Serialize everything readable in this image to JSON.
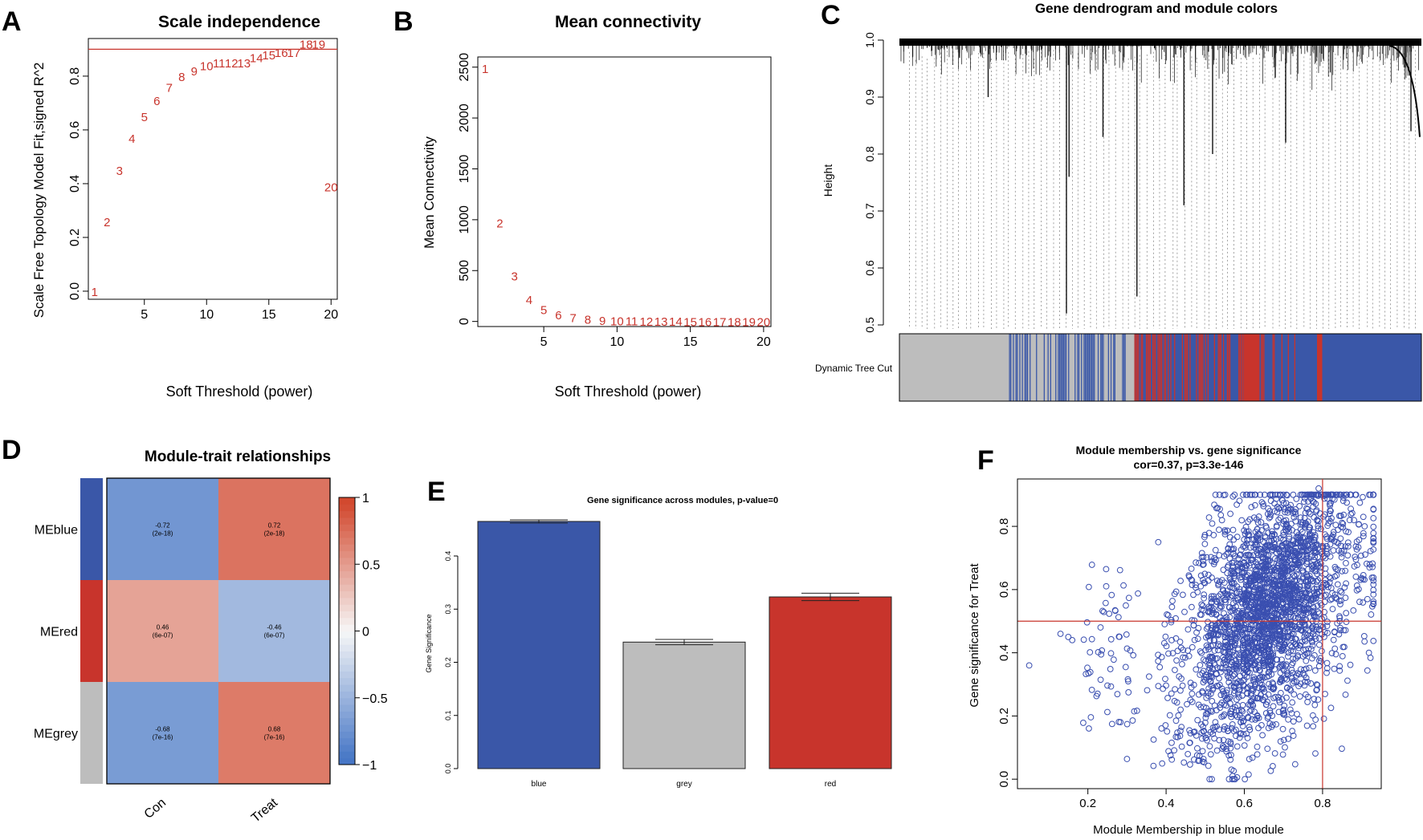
{
  "colors": {
    "red": "#c8342c",
    "blue": "#3a57a8",
    "grey": "#bdbdbd",
    "heat_low": "#4777c6",
    "heat_mid": "#f7f7f7",
    "heat_high": "#d2492f",
    "scatter": "#3a4fb0",
    "axis": "#000000"
  },
  "chart_data": [
    {
      "panel": "A",
      "type": "scatter",
      "title": "Scale independence",
      "xlabel": "Soft Threshold (power)",
      "ylabel": "Scale Free Topology Model Fit,signed R^2",
      "xlim": [
        0.5,
        20.5
      ],
      "ylim": [
        -0.03,
        0.94
      ],
      "xticks": [
        "5",
        "10",
        "15",
        "20"
      ],
      "yticks": [
        "0.0",
        "0.2",
        "0.4",
        "0.6",
        "0.8"
      ],
      "hline": 0.9,
      "points": [
        {
          "x": 1,
          "y": 0.0,
          "label": "1"
        },
        {
          "x": 2,
          "y": 0.26,
          "label": "2"
        },
        {
          "x": 3,
          "y": 0.45,
          "label": "3"
        },
        {
          "x": 4,
          "y": 0.57,
          "label": "4"
        },
        {
          "x": 5,
          "y": 0.65,
          "label": "5"
        },
        {
          "x": 6,
          "y": 0.71,
          "label": "6"
        },
        {
          "x": 7,
          "y": 0.76,
          "label": "7"
        },
        {
          "x": 8,
          "y": 0.8,
          "label": "8"
        },
        {
          "x": 9,
          "y": 0.82,
          "label": "9"
        },
        {
          "x": 10,
          "y": 0.84,
          "label": "10"
        },
        {
          "x": 11,
          "y": 0.85,
          "label": "11"
        },
        {
          "x": 12,
          "y": 0.85,
          "label": "12"
        },
        {
          "x": 13,
          "y": 0.85,
          "label": "13"
        },
        {
          "x": 14,
          "y": 0.87,
          "label": "14"
        },
        {
          "x": 15,
          "y": 0.88,
          "label": "15"
        },
        {
          "x": 16,
          "y": 0.89,
          "label": "16"
        },
        {
          "x": 17,
          "y": 0.89,
          "label": "17"
        },
        {
          "x": 18,
          "y": 0.92,
          "label": "18"
        },
        {
          "x": 19,
          "y": 0.92,
          "label": "19"
        },
        {
          "x": 20,
          "y": 0.39,
          "label": "20"
        }
      ]
    },
    {
      "panel": "B",
      "type": "scatter",
      "title": "Mean connectivity",
      "xlabel": "Soft Threshold (power)",
      "ylabel": "Mean Connectivity",
      "xlim": [
        0.5,
        20.5
      ],
      "ylim": [
        -50,
        2600
      ],
      "xticks": [
        "5",
        "10",
        "15",
        "20"
      ],
      "yticks": [
        "0",
        "500",
        "1000",
        "1500",
        "2000",
        "2500"
      ],
      "points": [
        {
          "x": 1,
          "y": 2490,
          "label": "1"
        },
        {
          "x": 2,
          "y": 970,
          "label": "2"
        },
        {
          "x": 3,
          "y": 450,
          "label": "3"
        },
        {
          "x": 4,
          "y": 220,
          "label": "4"
        },
        {
          "x": 5,
          "y": 120,
          "label": "5"
        },
        {
          "x": 6,
          "y": 70,
          "label": "6"
        },
        {
          "x": 7,
          "y": 40,
          "label": "7"
        },
        {
          "x": 8,
          "y": 25,
          "label": "8"
        },
        {
          "x": 9,
          "y": 15,
          "label": "9"
        },
        {
          "x": 10,
          "y": 10,
          "label": "10"
        },
        {
          "x": 11,
          "y": 8,
          "label": "11"
        },
        {
          "x": 12,
          "y": 6,
          "label": "12"
        },
        {
          "x": 13,
          "y": 5,
          "label": "13"
        },
        {
          "x": 14,
          "y": 4,
          "label": "14"
        },
        {
          "x": 15,
          "y": 3,
          "label": "15"
        },
        {
          "x": 16,
          "y": 3,
          "label": "16"
        },
        {
          "x": 17,
          "y": 2,
          "label": "17"
        },
        {
          "x": 18,
          "y": 2,
          "label": "18"
        },
        {
          "x": 19,
          "y": 2,
          "label": "19"
        },
        {
          "x": 20,
          "y": 1,
          "label": "20"
        }
      ]
    },
    {
      "panel": "C",
      "type": "dendrogram",
      "title": "Gene dendrogram and module colors",
      "ylabel": "Height",
      "ylim": [
        0.5,
        1.0
      ],
      "yticks": [
        "0.5",
        "0.6",
        "0.7",
        "0.8",
        "0.9",
        "1.0"
      ],
      "color_bar_label": "Dynamic Tree Cut",
      "color_bar_segments": [
        {
          "from": 0.0,
          "to": 0.21,
          "color": "grey"
        },
        {
          "from": 0.21,
          "to": 0.45,
          "color": "mixed-blue-grey"
        },
        {
          "from": 0.45,
          "to": 0.66,
          "color": "mixed-red-blue"
        },
        {
          "from": 0.66,
          "to": 0.69,
          "color": "red"
        },
        {
          "from": 0.69,
          "to": 0.76,
          "color": "mixed-red-blue"
        },
        {
          "from": 0.76,
          "to": 0.8,
          "color": "blue"
        },
        {
          "from": 0.8,
          "to": 0.81,
          "color": "red"
        },
        {
          "from": 0.81,
          "to": 1.0,
          "color": "blue"
        }
      ],
      "deep_merges": [
        {
          "pos": 0.32,
          "height": 0.52
        },
        {
          "pos": 0.455,
          "height": 0.55
        },
        {
          "pos": 0.545,
          "height": 0.71
        },
        {
          "pos": 0.325,
          "height": 0.76
        },
        {
          "pos": 0.17,
          "height": 0.9
        },
        {
          "pos": 0.39,
          "height": 0.83
        },
        {
          "pos": 0.6,
          "height": 0.8
        },
        {
          "pos": 0.74,
          "height": 0.82
        },
        {
          "pos": 0.98,
          "height": 0.84
        }
      ]
    },
    {
      "panel": "D",
      "type": "heatmap",
      "title": "Module-trait relationships",
      "rows": [
        "MEblue",
        "MEred",
        "MEgrey"
      ],
      "row_colors": [
        "blue",
        "red",
        "grey"
      ],
      "columns": [
        "Con",
        "Treat"
      ],
      "values": [
        [
          -0.72,
          0.72
        ],
        [
          0.46,
          -0.46
        ],
        [
          -0.68,
          0.68
        ]
      ],
      "cell_text": [
        [
          [
            "-0.72",
            "(2e-18)"
          ],
          [
            "0.72",
            "(2e-18)"
          ]
        ],
        [
          [
            "0.46",
            "(6e-07)"
          ],
          [
            "-0.46",
            "(6e-07)"
          ]
        ],
        [
          [
            "-0.68",
            "(7e-16)"
          ],
          [
            "0.68",
            "(7e-16)"
          ]
        ]
      ],
      "colorbar_ticks": [
        "1",
        "0.5",
        "0",
        "-0.5",
        "-1"
      ],
      "colorbar_range": [
        -1,
        1
      ]
    },
    {
      "panel": "E",
      "type": "bar",
      "title": "Gene significance across modules, p-value=0",
      "ylabel": "Gene Significance",
      "categories": [
        "blue",
        "grey",
        "red"
      ],
      "values": [
        0.465,
        0.238,
        0.323
      ],
      "errors": [
        0.003,
        0.005,
        0.007
      ],
      "bar_colors": [
        "blue",
        "grey",
        "red"
      ],
      "ylim": [
        0,
        0.48
      ],
      "yticks": [
        "0.0",
        "0.1",
        "0.2",
        "0.3",
        "0.4"
      ]
    },
    {
      "panel": "F",
      "type": "scatter",
      "title": "Module membership vs. gene significance",
      "subtitle": "cor=0.37, p=3.3e-146",
      "xlabel": "Module Membership in blue module",
      "ylabel": "Gene significance for Treat",
      "xlim": [
        0.02,
        0.95
      ],
      "ylim": [
        -0.03,
        0.95
      ],
      "xticks": [
        "0.2",
        "0.4",
        "0.6",
        "0.8"
      ],
      "yticks": [
        "0.0",
        "0.2",
        "0.4",
        "0.6",
        "0.8"
      ],
      "hline": 0.5,
      "vline": 0.8,
      "n_points": 2600,
      "points_sample": [
        {
          "x": 0.05,
          "y": 0.36
        },
        {
          "x": 0.13,
          "y": 0.46
        },
        {
          "x": 0.15,
          "y": 0.45
        },
        {
          "x": 0.16,
          "y": 0.44
        },
        {
          "x": 0.38,
          "y": 0.75
        },
        {
          "x": 0.57,
          "y": 0.01
        },
        {
          "x": 0.79,
          "y": 0.92
        },
        {
          "x": 0.92,
          "y": 0.67
        }
      ]
    }
  ],
  "panel_labels": [
    "A",
    "B",
    "C",
    "D",
    "E",
    "F"
  ]
}
